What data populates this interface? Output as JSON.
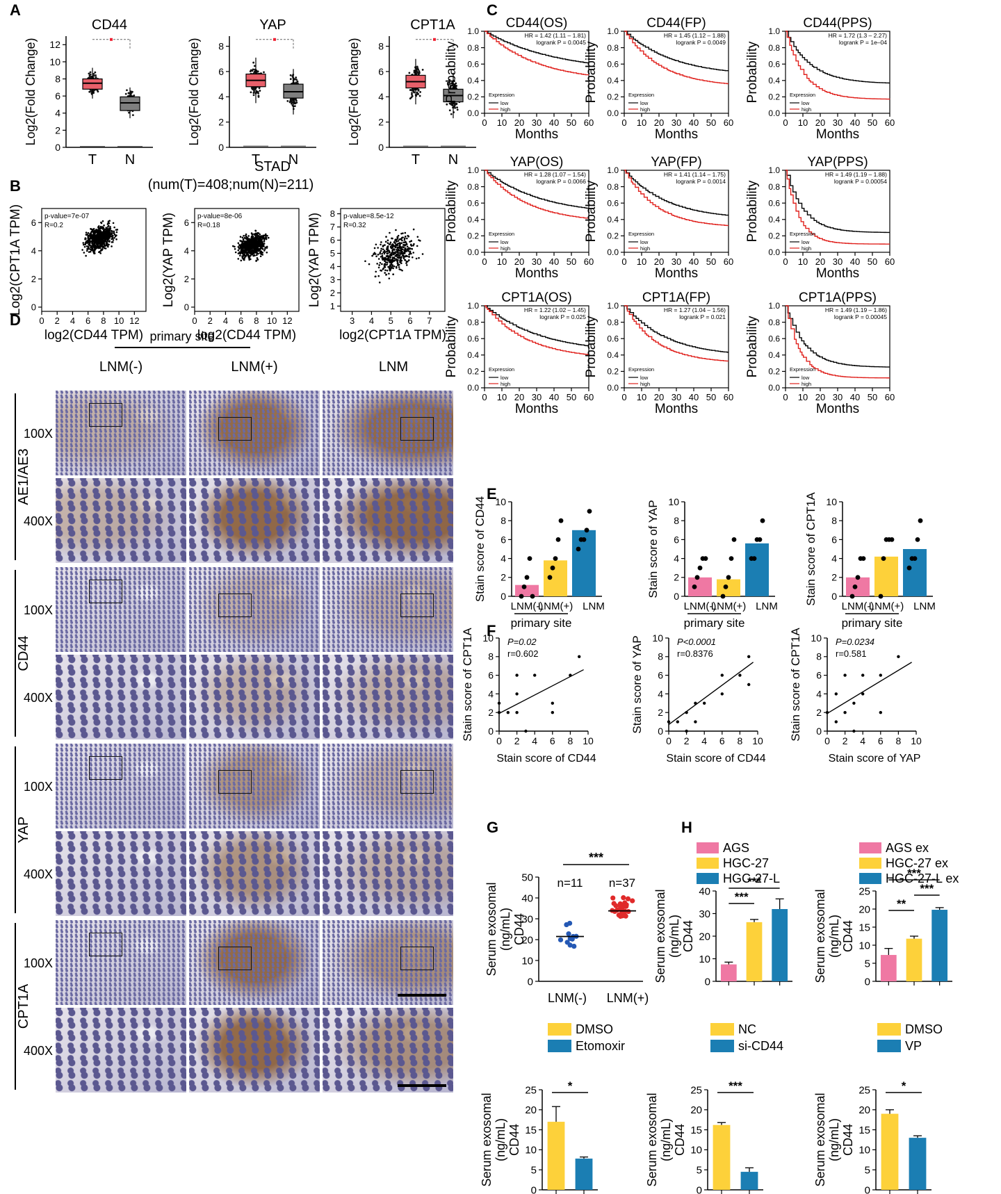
{
  "panel_letters": [
    "A",
    "B",
    "C",
    "D",
    "E",
    "F",
    "G",
    "H"
  ],
  "colors": {
    "tumor": "#e8606a",
    "normal": "#7f7f7f",
    "km_low": "#000000",
    "km_high": "#e0201c",
    "pink": "#ef78a3",
    "yellow": "#fdd13a",
    "blue": "#1b7eb3",
    "dot_blue": "#2458b4",
    "dot_red": "#e02a2a",
    "stain_brown": "#9a6a38",
    "stain_blue": "#b8b6d0"
  },
  "panelA": {
    "charts": [
      {
        "title": "CD44",
        "ylabel": "Log2(Fold Change)",
        "yticks": [
          "0",
          "2",
          "4",
          "6",
          "8",
          "10",
          "12"
        ],
        "ymax": 13,
        "x": [
          "T",
          "N"
        ],
        "T_median": 7.5,
        "N_median": 5.2,
        "T_q": [
          6.8,
          8.0
        ],
        "N_q": [
          4.3,
          5.9
        ]
      },
      {
        "title": "YAP",
        "ylabel": "Log2(Fold Change)",
        "yticks": [
          "0",
          "2",
          "4",
          "6",
          "8"
        ],
        "ymax": 8.8,
        "x": [
          "T",
          "N"
        ],
        "T_median": 5.3,
        "N_median": 4.4,
        "T_q": [
          4.8,
          5.8
        ],
        "N_q": [
          3.9,
          5.0
        ]
      },
      {
        "title": "CPT1A",
        "ylabel": "Log2(Fold Change)",
        "yticks": [
          "0",
          "2",
          "4",
          "6",
          "8"
        ],
        "ymax": 8.8,
        "x": [
          "T",
          "N"
        ],
        "T_median": 5.2,
        "N_median": 4.1,
        "T_q": [
          4.7,
          5.7
        ],
        "N_q": [
          3.6,
          4.6
        ]
      }
    ],
    "dataset": "STAD",
    "sample_note": "(num(T)=408;num(N)=211)"
  },
  "panelB": {
    "charts": [
      {
        "ylabel": "Log2(CPT1A TPM)",
        "xlabel": "log2(CD44 TPM)",
        "pvalue": "p-value=7e-07",
        "r": "R=0.2",
        "xticks": [
          "0",
          "2",
          "4",
          "6",
          "8",
          "10",
          "12"
        ],
        "xrange": [
          0,
          13.5
        ],
        "yticks": [
          "0",
          "2",
          "4",
          "6"
        ],
        "yrange": [
          -0.3,
          7
        ]
      },
      {
        "ylabel": "Log2(YAP TPM)",
        "xlabel": "log2(CD44 TPM)",
        "pvalue": "p-value=8e-06",
        "r": "R=0.18",
        "xticks": [
          "0",
          "2",
          "4",
          "6",
          "8",
          "10",
          "12"
        ],
        "xrange": [
          0,
          13.5
        ],
        "yticks": [
          "0",
          "2",
          "4",
          "6"
        ],
        "yrange": [
          -0.3,
          7
        ]
      },
      {
        "ylabel": "Log2(YAP TPM)",
        "xlabel": "log2(CPT1A TPM)",
        "pvalue": "p-value=8.5e-12",
        "r": "R=0.32",
        "xticks": [
          "3",
          "4",
          "5",
          "6",
          "7"
        ],
        "xrange": [
          2.4,
          7.8
        ],
        "yticks": [
          "1",
          "2",
          "3",
          "4",
          "5",
          "6",
          "7",
          "8"
        ],
        "yrange": [
          0.6,
          8.4
        ]
      }
    ]
  },
  "panelC": {
    "ylabel": "Probability",
    "xlabel": "Months",
    "xticks": [
      "0",
      "10",
      "20",
      "30",
      "40",
      "50",
      "60"
    ],
    "yticks": [
      "0.0",
      "0.2",
      "0.4",
      "0.6",
      "0.8",
      "1.0"
    ],
    "legend": {
      "title": "Expression",
      "low": "low",
      "high": "high"
    },
    "charts": [
      {
        "title": "CD44(OS)",
        "hr": "HR = 1.42 (1.11 – 1.81)",
        "p": "logrank P = 0.0045",
        "low_end": 0.5,
        "high_end": 0.38,
        "k": 40
      },
      {
        "title": "CD44(FP)",
        "hr": "HR = 1.45 (1.12 – 1.88)",
        "p": "logrank P = 0.0049",
        "low_end": 0.45,
        "high_end": 0.32,
        "k": 28
      },
      {
        "title": "CD44(PPS)",
        "hr": "HR = 1.72 (1.3 – 2.27)",
        "p": "logrank P = 1e–04",
        "low_end": 0.36,
        "high_end": 0.17,
        "k": 14
      },
      {
        "title": "YAP(OS)",
        "hr": "HR = 1.28 (1.07 – 1.54)",
        "p": "logrank P = 0.0066",
        "low_end": 0.45,
        "high_end": 0.36,
        "k": 32
      },
      {
        "title": "YAP(FP)",
        "hr": "HR = 1.41 (1.14 – 1.75)",
        "p": "logrank P = 0.0014",
        "low_end": 0.4,
        "high_end": 0.3,
        "k": 24
      },
      {
        "title": "YAP(PPS)",
        "hr": "HR = 1.49 (1.19 – 1.88)",
        "p": "logrank P = 0.00054",
        "low_end": 0.24,
        "high_end": 0.1,
        "k": 10
      },
      {
        "title": "CPT1A(OS)",
        "hr": "HR = 1.22 (1.02 – 1.45)",
        "p": "logrank P = 0.025",
        "low_end": 0.42,
        "high_end": 0.35,
        "k": 32
      },
      {
        "title": "CPT1A(FP)",
        "hr": "HR = 1.27 (1.04 – 1.56)",
        "p": "logrank P = 0.021",
        "low_end": 0.38,
        "high_end": 0.3,
        "k": 24
      },
      {
        "title": "CPT1A(PPS)",
        "hr": "HR = 1.49 (1.19 – 1.86)",
        "p": "logrank P = 0.00045",
        "low_end": 0.25,
        "high_end": 0.12,
        "k": 11
      }
    ]
  },
  "panelD": {
    "header": "primary site",
    "columns": [
      "LNM(-)",
      "LNM(+)",
      "LNM"
    ],
    "rows": [
      {
        "label": "AE1/AE3",
        "levels": [
          "weak",
          "strong",
          "strong"
        ]
      },
      {
        "label": "CD44",
        "levels": [
          "none",
          "weak",
          "weak"
        ]
      },
      {
        "label": "YAP",
        "levels": [
          "none",
          "medium",
          "weak"
        ]
      },
      {
        "label": "CPT1A",
        "levels": [
          "none",
          "strong",
          "medium"
        ]
      }
    ],
    "mags": [
      "100X",
      "400X"
    ]
  },
  "panelE": {
    "xlabels": [
      "LNM(-)",
      "LNM(+)",
      "LNM"
    ],
    "group_label": "primary site",
    "charts": [
      {
        "ylabel": "Stain score of CD44",
        "yticks": [
          "0",
          "2",
          "4",
          "6",
          "8",
          "10"
        ],
        "ymax": 10,
        "means": [
          1.2,
          3.8,
          7.0
        ],
        "points": [
          [
            0,
            1,
            2,
            4,
            0
          ],
          [
            2,
            3,
            4,
            6,
            8
          ],
          [
            5,
            6,
            6,
            7,
            9
          ]
        ]
      },
      {
        "ylabel": "Stain score of YAP",
        "yticks": [
          "0",
          "2",
          "4",
          "6",
          "8",
          "10"
        ],
        "ymax": 10,
        "means": [
          2.0,
          1.8,
          5.6
        ],
        "points": [
          [
            1,
            2,
            3,
            4,
            4
          ],
          [
            0,
            1,
            2,
            4,
            6
          ],
          [
            4,
            4,
            6,
            6,
            8
          ]
        ]
      },
      {
        "ylabel": "Stain score of CPT1A",
        "yticks": [
          "0",
          "2",
          "4",
          "6",
          "8",
          "10"
        ],
        "ymax": 10,
        "means": [
          2.0,
          4.2,
          5.0
        ],
        "points": [
          [
            0,
            1,
            2,
            4,
            4
          ],
          [
            0,
            4,
            6,
            6,
            6
          ],
          [
            3,
            4,
            4,
            6,
            8
          ]
        ]
      }
    ]
  },
  "panelF": {
    "charts": [
      {
        "ylabel": "Stain score of CPT1A",
        "xlabel": "Stain score of CD44",
        "p": "P=0.02",
        "r": "r=0.602",
        "xticks": [
          "0",
          "2",
          "4",
          "6",
          "8",
          "10"
        ],
        "yticks": [
          "0",
          "2",
          "4",
          "6",
          "8",
          "10"
        ],
        "points": [
          [
            0,
            2
          ],
          [
            0,
            3
          ],
          [
            1,
            2
          ],
          [
            2,
            2
          ],
          [
            2,
            4
          ],
          [
            2,
            6
          ],
          [
            3,
            0
          ],
          [
            4,
            6
          ],
          [
            6,
            2
          ],
          [
            6,
            3
          ],
          [
            8,
            6
          ],
          [
            9,
            8
          ]
        ],
        "fit": [
          1.9,
          6.6
        ]
      },
      {
        "ylabel": "Stain score of YAP",
        "xlabel": "Stain score of CD44",
        "p": "P<0.0001",
        "r": "r=0.8376",
        "xticks": [
          "0",
          "2",
          "4",
          "6",
          "8",
          "10"
        ],
        "yticks": [
          "0",
          "2",
          "4",
          "6",
          "8",
          "10"
        ],
        "points": [
          [
            0,
            1
          ],
          [
            1,
            1
          ],
          [
            2,
            0
          ],
          [
            2,
            2
          ],
          [
            3,
            1
          ],
          [
            3,
            3
          ],
          [
            4,
            3
          ],
          [
            6,
            4
          ],
          [
            6,
            6
          ],
          [
            8,
            6
          ],
          [
            9,
            5
          ],
          [
            9,
            8
          ]
        ],
        "fit": [
          0.7,
          7.4
        ]
      },
      {
        "ylabel": "Stain score of CPT1A",
        "xlabel": "Stain score of YAP",
        "p": "P=0.0234",
        "r": "r=0.581",
        "xticks": [
          "0",
          "2",
          "4",
          "6",
          "8",
          "10"
        ],
        "yticks": [
          "0",
          "2",
          "4",
          "6",
          "8",
          "10"
        ],
        "points": [
          [
            0,
            2
          ],
          [
            1,
            1
          ],
          [
            1,
            4
          ],
          [
            2,
            2
          ],
          [
            2,
            6
          ],
          [
            3,
            0
          ],
          [
            3,
            3
          ],
          [
            4,
            4
          ],
          [
            4,
            6
          ],
          [
            6,
            2
          ],
          [
            6,
            6
          ],
          [
            8,
            8
          ]
        ],
        "fit": [
          1.9,
          7.4
        ]
      }
    ]
  },
  "panelG": {
    "ylabel_top": "Serum exosomal",
    "ylabel_bot": "(ng/mL)",
    "ylabel_extra": "CD44",
    "yticks": [
      "0",
      "10",
      "20",
      "30",
      "40",
      "50"
    ],
    "groups": [
      "LNM(-)",
      "LNM(+)"
    ],
    "n": [
      "n=11",
      "n=37"
    ],
    "sig": "***",
    "means": [
      21.5,
      33.8
    ]
  },
  "panelH": {
    "ylabel": "Serum exosomal (ng/mL) CD44",
    "top": [
      {
        "legend": [
          "AGS",
          "HGC-27",
          "HGC-27-L"
        ],
        "values": [
          7.5,
          26.2,
          32.0
        ],
        "errors": [
          1.0,
          1.2,
          4.5
        ],
        "yticks": [
          "0",
          "10",
          "20",
          "30",
          "40"
        ],
        "ymax": 40,
        "sig": [
          {
            "a": 0,
            "b": 1,
            "t": "***",
            "lvl": 0
          },
          {
            "a": 0,
            "b": 2,
            "t": "***",
            "lvl": 1
          }
        ]
      },
      {
        "legend": [
          "AGS ex",
          "HGC-27 ex",
          "HGC-27-L ex"
        ],
        "values": [
          7.3,
          11.8,
          19.8
        ],
        "errors": [
          1.8,
          0.7,
          0.6
        ],
        "yticks": [
          "0",
          "5",
          "10",
          "15",
          "20",
          "25"
        ],
        "ymax": 25,
        "sig": [
          {
            "a": 0,
            "b": 1,
            "t": "**",
            "lvl": 0
          },
          {
            "a": 1,
            "b": 2,
            "t": "***",
            "lvl": 1
          },
          {
            "a": 0,
            "b": 2,
            "t": "***",
            "lvl": 2
          }
        ]
      }
    ],
    "bottom": [
      {
        "legend": [
          "DMSO",
          "Etomoxir"
        ],
        "values": [
          17.0,
          7.8
        ],
        "errors": [
          3.8,
          0.4
        ],
        "sig": "*"
      },
      {
        "legend": [
          "NC",
          "si-CD44"
        ],
        "values": [
          16.2,
          4.5
        ],
        "errors": [
          0.6,
          1.0
        ],
        "sig": "***"
      },
      {
        "legend": [
          "DMSO",
          "VP"
        ],
        "values": [
          19.0,
          13.0
        ],
        "errors": [
          1.0,
          0.5
        ],
        "sig": "*"
      }
    ],
    "bottom_yticks": [
      "0",
      "5",
      "10",
      "15",
      "20",
      "25"
    ]
  }
}
